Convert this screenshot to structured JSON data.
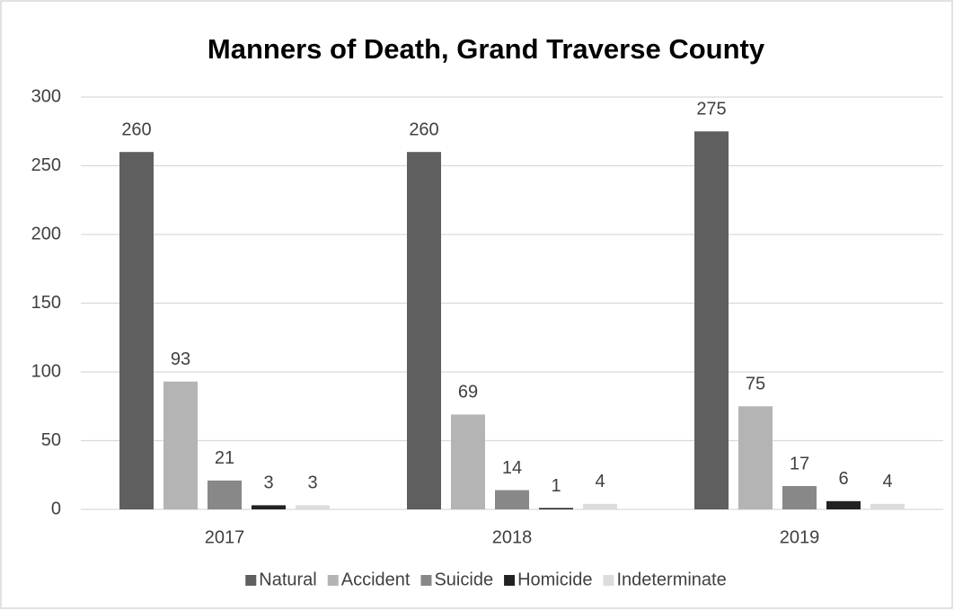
{
  "chart_data": {
    "type": "bar",
    "title": "Manners of Death, Grand Traverse County",
    "categories": [
      "2017",
      "2018",
      "2019"
    ],
    "series": [
      {
        "name": "Natural",
        "color": "#5f5f5f",
        "values": [
          260,
          260,
          275
        ]
      },
      {
        "name": "Accident",
        "color": "#b4b4b4",
        "values": [
          93,
          69,
          75
        ]
      },
      {
        "name": "Suicide",
        "color": "#888888",
        "values": [
          21,
          14,
          17
        ]
      },
      {
        "name": "Homicide",
        "color": "#222222",
        "values": [
          3,
          1,
          6
        ]
      },
      {
        "name": "Indeterminate",
        "color": "#dcdcdc",
        "values": [
          3,
          4,
          4
        ]
      }
    ],
    "ylim": [
      0,
      300
    ],
    "yticks": [
      0,
      50,
      100,
      150,
      200,
      250,
      300
    ],
    "grid": true,
    "legend": "bottom"
  }
}
